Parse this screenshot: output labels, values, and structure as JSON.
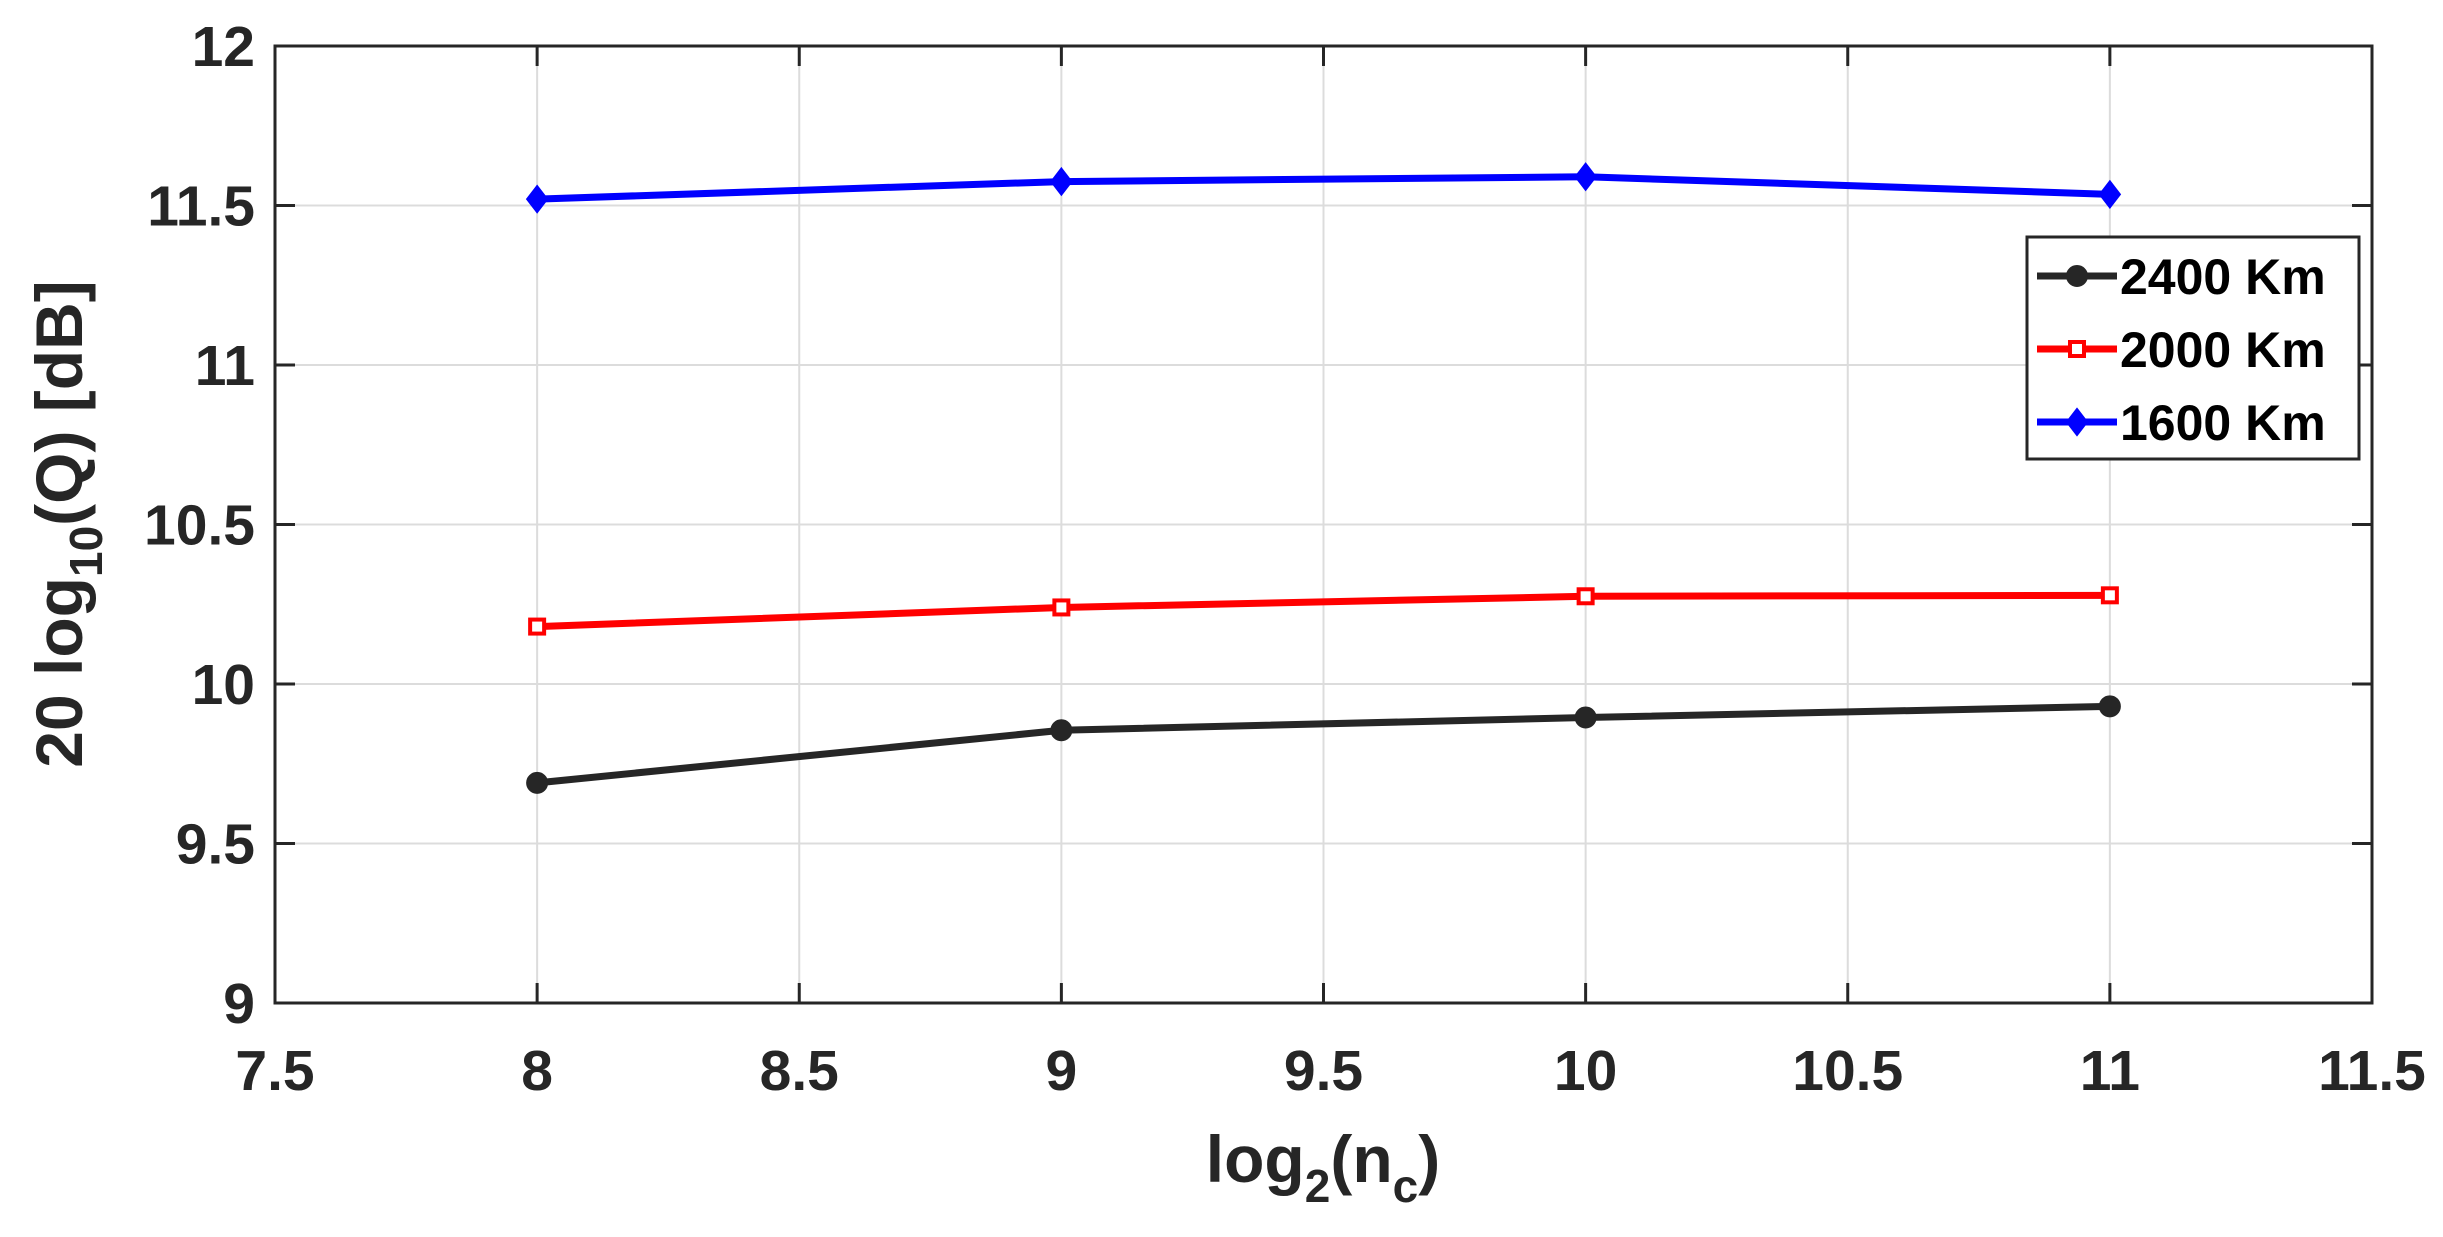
{
  "chart_data": {
    "type": "line",
    "title": "",
    "xlabel": {
      "pre": "log",
      "sub": "2",
      "mid": "(n",
      "sub2": "c",
      "post": ")"
    },
    "ylabel": {
      "pre": "20 log",
      "sub": "10",
      "post": "(Q) [dB]"
    },
    "xlim": [
      7.5,
      11.5
    ],
    "ylim": [
      9,
      12
    ],
    "xticks": [
      "7.5",
      "8",
      "8.5",
      "9",
      "9.5",
      "10",
      "10.5",
      "11",
      "11.5"
    ],
    "yticks": [
      "9",
      "9.5",
      "10",
      "10.5",
      "11",
      "11.5",
      "12"
    ],
    "grid": true,
    "legend_position": "right, upper",
    "x": [
      8,
      9,
      10,
      11
    ],
    "series": [
      {
        "name": "2400 Km",
        "values": [
          9.69,
          9.855,
          9.895,
          9.93
        ],
        "color": "#262626",
        "marker": "circle"
      },
      {
        "name": "2000 Km",
        "values": [
          10.18,
          10.24,
          10.275,
          10.278
        ],
        "color": "#ff0000",
        "marker": "square"
      },
      {
        "name": "1600 Km",
        "values": [
          11.52,
          11.575,
          11.59,
          11.535
        ],
        "color": "#0000ff",
        "marker": "diamond"
      }
    ]
  }
}
